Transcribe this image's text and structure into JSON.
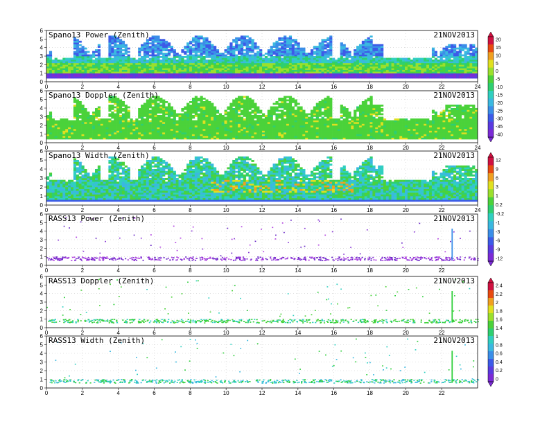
{
  "chart_data": [
    {
      "type": "heatmap",
      "title": "Spano13 Power (Zenith)",
      "date": "21NOV2013",
      "x_ticks": [
        "0",
        "2",
        "4",
        "6",
        "8",
        "10",
        "12",
        "14",
        "16",
        "18",
        "20",
        "22",
        "24"
      ],
      "xlim": [
        0,
        24
      ],
      "y_ticks": [
        "0",
        "1",
        "2",
        "3",
        "4",
        "5",
        "6"
      ],
      "ylim": [
        0,
        6
      ],
      "colorbar": {
        "ticks": [
          "20",
          "15",
          "10",
          "5",
          "0",
          "-5",
          "-10",
          "-15",
          "-20",
          "-25",
          "-30",
          "-35",
          "-40"
        ],
        "range": [
          -45,
          22
        ],
        "colors": [
          "#6a0dad",
          "#3e2fd6",
          "#2f6fe6",
          "#2fb0e6",
          "#26d0a0",
          "#2ecf3a",
          "#9be02c",
          "#f0e020",
          "#f0a020",
          "#e83010",
          "#d01040"
        ]
      },
      "description": "Dense returns 0.5-3 km with scattered columns to 5.5 km; high values (green/yellow) near 1-2 km, low (purple) near 0.6 km.",
      "gaps_hours": [
        [
          0,
          1.5
        ],
        [
          2.8,
          3.5
        ],
        [
          4.5,
          5.0
        ]
      ]
    },
    {
      "type": "heatmap",
      "title": "Spano13 Doppler (Zenith)",
      "date": "21NOV2013",
      "x_ticks": [
        "0",
        "2",
        "4",
        "6",
        "8",
        "10",
        "12",
        "14",
        "16",
        "18",
        "20",
        "22",
        "24"
      ],
      "xlim": [
        0,
        24
      ],
      "y_ticks": [
        "0",
        "1",
        "2",
        "3",
        "4",
        "5",
        "6"
      ],
      "ylim": [
        0,
        6
      ],
      "description": "Mostly green (near-zero) Doppler across 0.5-5.5 km."
    },
    {
      "type": "heatmap",
      "title": "Spano13 Width (Zenith)",
      "date": "21NOV2013",
      "x_ticks": [
        "0",
        "2",
        "4",
        "6",
        "8",
        "10",
        "12",
        "14",
        "16",
        "18",
        "20",
        "22",
        "24"
      ],
      "xlim": [
        0,
        24
      ],
      "y_ticks": [
        "0",
        "1",
        "2",
        "3",
        "4",
        "5",
        "6"
      ],
      "ylim": [
        0,
        6
      ],
      "colorbar": {
        "ticks": [
          "12",
          "9",
          "6",
          "3",
          "1",
          "0.2",
          "-0.2",
          "-1",
          "-3",
          "-6",
          "-9",
          "-12"
        ],
        "range": [
          -13,
          13
        ]
      },
      "description": "Spectral width mostly cyan/green, with yellow/orange maxima near 2 km around 12 h."
    },
    {
      "type": "scatter",
      "title": "RASS13 Power (Zenith)",
      "date": "21NOV2013",
      "x_ticks": [
        "0",
        "2",
        "4",
        "6",
        "8",
        "10",
        "12",
        "14",
        "16",
        "18",
        "20",
        "22"
      ],
      "xlim": [
        0,
        24
      ],
      "y_ticks": [
        "0",
        "1",
        "2",
        "3",
        "4",
        "5",
        "6"
      ],
      "ylim": [
        0,
        6
      ],
      "description": "Purple band at ~0.7-1.0 km all day, sparse points above; vertical spike near 22.6 h."
    },
    {
      "type": "scatter",
      "title": "RASS13 Doppler (Zenith)",
      "date": "21NOV2013",
      "x_ticks": [
        "0",
        "2",
        "4",
        "6",
        "8",
        "10",
        "12",
        "14",
        "16",
        "18",
        "20",
        "22"
      ],
      "xlim": [
        0,
        24
      ],
      "y_ticks": [
        "0",
        "1",
        "2",
        "3",
        "4",
        "5",
        "6"
      ],
      "ylim": [
        0,
        6
      ],
      "colorbar": {
        "ticks": [
          "2.4",
          "2.2",
          "2",
          "1.8",
          "1.6",
          "1.4",
          "1",
          "0.8",
          "0.6",
          "0.4",
          "0.2",
          "0"
        ],
        "range": [
          -0.1,
          2.5
        ]
      },
      "description": "Green band at ~0.7-1.0 km with scattered points above; spike near 22.6 h."
    },
    {
      "type": "scatter",
      "title": "RASS13 Width (Zenith)",
      "date": "21NOV2013",
      "x_ticks": [
        "0",
        "2",
        "4",
        "6",
        "8",
        "10",
        "12",
        "14",
        "16",
        "18",
        "20",
        "22"
      ],
      "xlim": [
        0,
        24
      ],
      "y_ticks": [
        "0",
        "1",
        "2",
        "3",
        "4",
        "5",
        "6"
      ],
      "ylim": [
        0,
        6
      ],
      "description": "Green/cyan band at ~0.7-1.0 km; spike near 22.6 h."
    }
  ]
}
